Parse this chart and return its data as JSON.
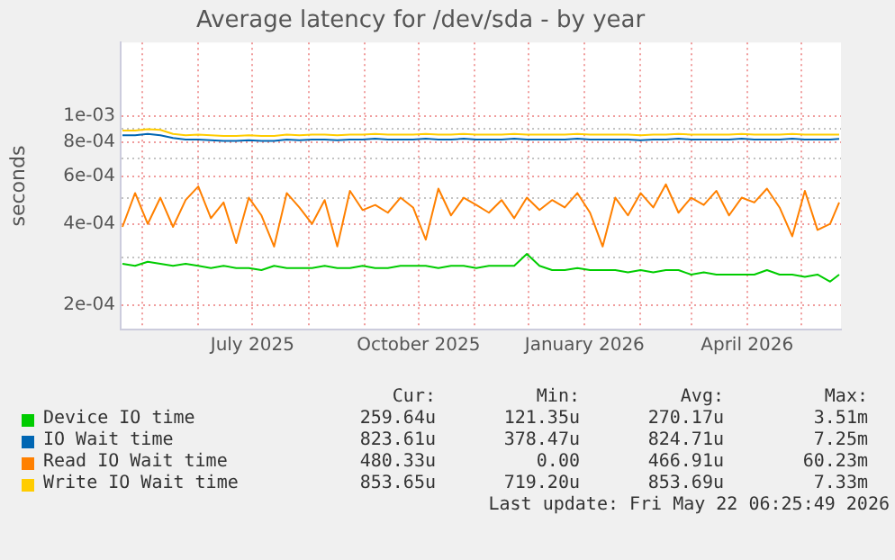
{
  "chart_data": {
    "type": "line",
    "title": "Average latency for /dev/sda - by year",
    "ylabel": "seconds",
    "x": [
      "2025-04-20",
      "2025-04-27",
      "2025-05-04",
      "2025-05-11",
      "2025-05-18",
      "2025-05-25",
      "2025-06-01",
      "2025-06-08",
      "2025-06-15",
      "2025-06-22",
      "2025-06-29",
      "2025-07-06",
      "2025-07-13",
      "2025-07-20",
      "2025-07-27",
      "2025-08-03",
      "2025-08-10",
      "2025-08-17",
      "2025-08-24",
      "2025-08-31",
      "2025-09-07",
      "2025-09-14",
      "2025-09-21",
      "2025-09-28",
      "2025-10-05",
      "2025-10-12",
      "2025-10-19",
      "2025-10-26",
      "2025-11-02",
      "2025-11-09",
      "2025-11-16",
      "2025-11-23",
      "2025-11-30",
      "2025-12-07",
      "2025-12-14",
      "2025-12-21",
      "2025-12-28",
      "2026-01-04",
      "2026-01-11",
      "2026-01-18",
      "2026-01-25",
      "2026-02-01",
      "2026-02-08",
      "2026-02-15",
      "2026-02-22",
      "2026-03-01",
      "2026-03-08",
      "2026-03-15",
      "2026-03-22",
      "2026-03-29",
      "2026-04-05",
      "2026-04-12",
      "2026-04-19",
      "2026-04-26",
      "2026-05-03",
      "2026-05-10",
      "2026-05-17",
      "2026-05-22"
    ],
    "series": [
      {
        "name": "Device IO time",
        "color": "#00cc00",
        "values": [
          0.000285,
          0.00028,
          0.00029,
          0.000285,
          0.00028,
          0.000285,
          0.00028,
          0.000275,
          0.00028,
          0.000275,
          0.000275,
          0.00027,
          0.00028,
          0.000275,
          0.000275,
          0.000275,
          0.00028,
          0.000275,
          0.000275,
          0.00028,
          0.000275,
          0.000275,
          0.00028,
          0.00028,
          0.00028,
          0.000275,
          0.00028,
          0.00028,
          0.000275,
          0.00028,
          0.00028,
          0.00028,
          0.00031,
          0.00028,
          0.00027,
          0.00027,
          0.000275,
          0.00027,
          0.00027,
          0.00027,
          0.000265,
          0.00027,
          0.000265,
          0.00027,
          0.00027,
          0.00026,
          0.000265,
          0.00026,
          0.00026,
          0.00026,
          0.00026,
          0.00027,
          0.00026,
          0.00026,
          0.000255,
          0.00026,
          0.000245,
          0.00026
        ]
      },
      {
        "name": "IO Wait time",
        "color": "#0066b3",
        "values": [
          0.00085,
          0.00085,
          0.00086,
          0.00085,
          0.00083,
          0.00082,
          0.00082,
          0.000815,
          0.00081,
          0.00081,
          0.000815,
          0.00081,
          0.00081,
          0.00082,
          0.000815,
          0.00082,
          0.00082,
          0.000815,
          0.00082,
          0.00082,
          0.000825,
          0.00082,
          0.00082,
          0.00082,
          0.000825,
          0.00082,
          0.00082,
          0.000825,
          0.00082,
          0.00082,
          0.00082,
          0.000825,
          0.00082,
          0.00082,
          0.00082,
          0.00082,
          0.000825,
          0.00082,
          0.00082,
          0.00082,
          0.00082,
          0.000815,
          0.00082,
          0.00082,
          0.000825,
          0.00082,
          0.00082,
          0.00082,
          0.00082,
          0.000825,
          0.00082,
          0.00082,
          0.00082,
          0.000825,
          0.00082,
          0.00082,
          0.00082,
          0.000824
        ]
      },
      {
        "name": "Read IO Wait time",
        "color": "#ff8000",
        "values": [
          0.00039,
          0.00052,
          0.0004,
          0.0005,
          0.00039,
          0.00049,
          0.00055,
          0.00042,
          0.00048,
          0.00034,
          0.0005,
          0.00043,
          0.00033,
          0.00052,
          0.00046,
          0.0004,
          0.00049,
          0.00033,
          0.00053,
          0.00045,
          0.00047,
          0.00044,
          0.0005,
          0.00046,
          0.00035,
          0.00054,
          0.00043,
          0.0005,
          0.00047,
          0.00044,
          0.00049,
          0.00042,
          0.0005,
          0.00045,
          0.00049,
          0.00046,
          0.00052,
          0.00044,
          0.00033,
          0.0005,
          0.00043,
          0.00052,
          0.00046,
          0.00056,
          0.00044,
          0.0005,
          0.00047,
          0.00053,
          0.00043,
          0.0005,
          0.00048,
          0.00054,
          0.00046,
          0.00036,
          0.00053,
          0.00038,
          0.0004,
          0.00048
        ]
      },
      {
        "name": "Write IO Wait time",
        "color": "#ffcc00",
        "values": [
          0.000885,
          0.000885,
          0.000895,
          0.00089,
          0.00086,
          0.00085,
          0.000855,
          0.00085,
          0.000845,
          0.000845,
          0.00085,
          0.000845,
          0.000845,
          0.000855,
          0.00085,
          0.000855,
          0.000855,
          0.00085,
          0.000855,
          0.000855,
          0.00086,
          0.000855,
          0.000855,
          0.000855,
          0.00086,
          0.000855,
          0.000855,
          0.00086,
          0.000855,
          0.000855,
          0.000855,
          0.00086,
          0.000855,
          0.000855,
          0.000855,
          0.000855,
          0.00086,
          0.000855,
          0.000855,
          0.000855,
          0.000855,
          0.00085,
          0.000855,
          0.000855,
          0.00086,
          0.000855,
          0.000855,
          0.000855,
          0.000855,
          0.00086,
          0.000855,
          0.000855,
          0.000855,
          0.00086,
          0.000855,
          0.000855,
          0.000855,
          0.000854
        ]
      }
    ],
    "log": "y",
    "ylim": [
      0.000163,
      0.00187
    ],
    "yticks": [
      {
        "value": 0.0002,
        "label": "2e-04"
      },
      {
        "value": 0.0003,
        "label": null
      },
      {
        "value": 0.0004,
        "label": "4e-04"
      },
      {
        "value": 0.0005,
        "label": null
      },
      {
        "value": 0.0006,
        "label": "6e-04"
      },
      {
        "value": 0.0007,
        "label": null
      },
      {
        "value": 0.0008,
        "label": "8e-04"
      },
      {
        "value": 0.0009,
        "label": null
      },
      {
        "value": 0.001,
        "label": "1e-03"
      }
    ],
    "xlim": [
      "2025-04-19",
      "2026-05-23"
    ],
    "xticks": [
      {
        "value": "2025-05-01",
        "label": null
      },
      {
        "value": "2025-06-01",
        "label": null
      },
      {
        "value": "2025-07-01",
        "label": "July 2025"
      },
      {
        "value": "2025-08-01",
        "label": null
      },
      {
        "value": "2025-09-01",
        "label": null
      },
      {
        "value": "2025-10-01",
        "label": "October 2025"
      },
      {
        "value": "2025-11-01",
        "label": null
      },
      {
        "value": "2025-12-01",
        "label": null
      },
      {
        "value": "2026-01-01",
        "label": "January 2026"
      },
      {
        "value": "2026-02-01",
        "label": null
      },
      {
        "value": "2026-03-01",
        "label": null
      },
      {
        "value": "2026-04-01",
        "label": "April 2026"
      },
      {
        "value": "2026-05-01",
        "label": null
      }
    ],
    "grid": true,
    "legend": "bottom",
    "marker": "none",
    "annotations": [
      "Cur:",
      "Min:",
      "Avg:",
      "Max:",
      "259.64u",
      "121.35u",
      "270.17u",
      "3.51m",
      "823.61u",
      "378.47u",
      "824.71u",
      "7.25m",
      "480.33u",
      "0.00",
      "466.91u",
      "60.23m",
      "853.65u",
      "719.20u",
      "853.69u",
      "7.33m",
      "Last update: Fri May 22 06:25:49 2026"
    ]
  }
}
